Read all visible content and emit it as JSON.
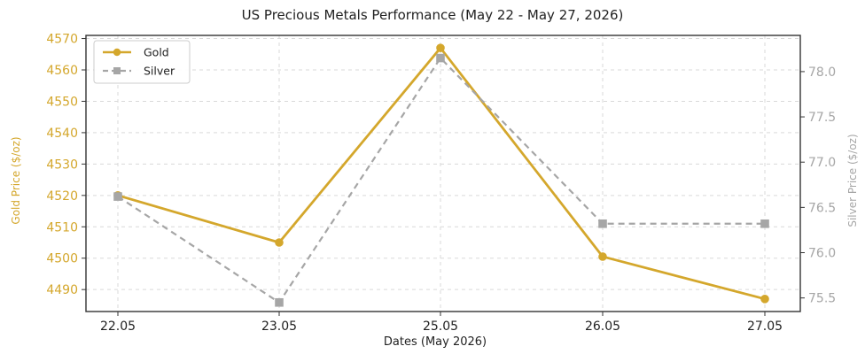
{
  "chart_data": {
    "type": "line",
    "title": "US Precious Metals Performance (May 22 - May 27, 2026)",
    "xlabel": "Dates (May 2026)",
    "categories": [
      "22.05",
      "23.05",
      "25.05",
      "26.05",
      "27.05"
    ],
    "grid": true,
    "legend_position": "top-left",
    "series": [
      {
        "name": "Gold",
        "axis": "left",
        "color": "#d4a72c",
        "marker": "circle",
        "line_style": "solid",
        "values": [
          4520.0,
          4505.0,
          4567.0,
          4500.5,
          4487.0
        ]
      },
      {
        "name": "Silver",
        "axis": "right",
        "color": "#a6a6a6",
        "marker": "square",
        "line_style": "dashed",
        "values": [
          76.62,
          75.45,
          78.15,
          76.32,
          76.32
        ]
      }
    ],
    "y_left": {
      "label": "Gold Price ($/oz)",
      "color": "#d4a72c",
      "ylim": [
        4483,
        4571
      ],
      "ticks": [
        4490,
        4500,
        4510,
        4520,
        4530,
        4540,
        4550,
        4560,
        4570
      ]
    },
    "y_right": {
      "label": "Silver Price ($/oz)",
      "color": "#a6a6a6",
      "ylim": [
        75.35,
        78.4
      ],
      "ticks": [
        75.5,
        76.0,
        76.5,
        77.0,
        77.5,
        78.0
      ],
      "tick_labels": [
        "75.5",
        "76.0",
        "76.5",
        "77.0",
        "77.5",
        "78.0"
      ]
    }
  }
}
